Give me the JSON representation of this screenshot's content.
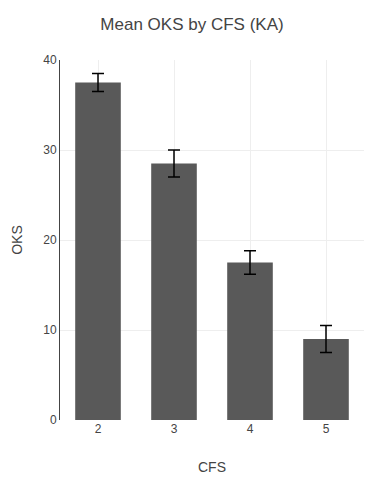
{
  "chart_data": {
    "type": "bar",
    "title": "Mean OKS by CFS (KA)",
    "xlabel": "CFS",
    "ylabel": "OKS",
    "categories": [
      "2",
      "3",
      "4",
      "5"
    ],
    "values": [
      37.5,
      28.5,
      17.5,
      9.0
    ],
    "errors": [
      1.0,
      1.5,
      1.3,
      1.5
    ],
    "color": "#595959",
    "ylim": [
      0,
      40
    ],
    "yticks": [
      0,
      10,
      20,
      30,
      40
    ],
    "grid": true
  }
}
